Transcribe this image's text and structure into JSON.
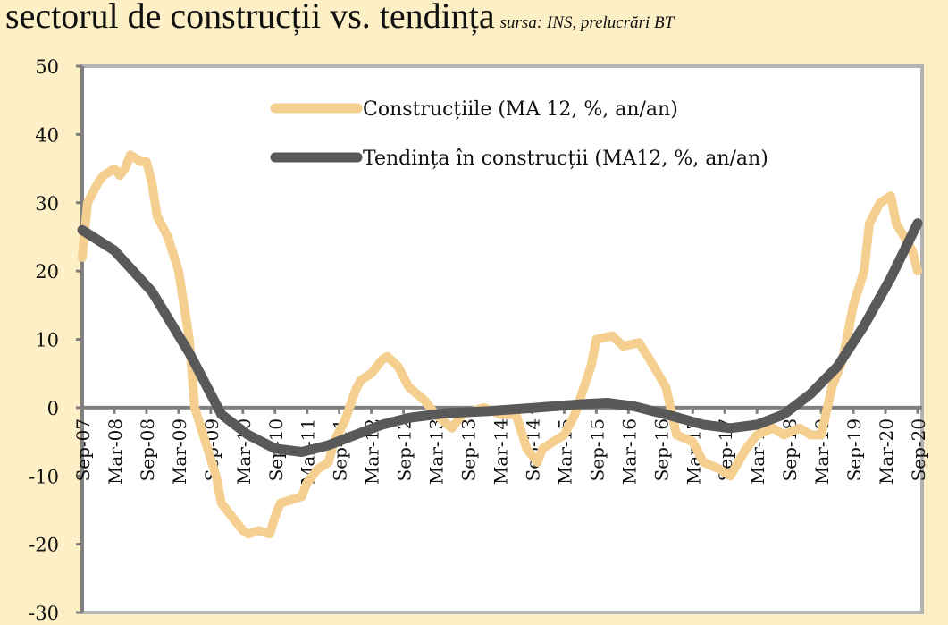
{
  "title": "sectorul de construcții vs. tendința",
  "source": "sursa: INS, prelucrări BT",
  "chart_data": {
    "type": "line",
    "title": "sectorul de construcții vs. tendința",
    "xlabel": "",
    "ylabel": "",
    "ylim": [
      -30,
      50
    ],
    "yticks": [
      50,
      40,
      30,
      20,
      10,
      0,
      -10,
      -20,
      -30
    ],
    "xlim": [
      "2007-09",
      "2020-09"
    ],
    "xticks": [
      "Sep-07",
      "Mar-08",
      "Sep-08",
      "Mar-09",
      "Sep-09",
      "Mar-10",
      "Sep-10",
      "Mar-11",
      "Sep-11",
      "Mar-12",
      "Sep-12",
      "Mar-13",
      "Sep-13",
      "Mar-14",
      "Sep-14",
      "Mar-15",
      "Sep-15",
      "Mar-16",
      "Sep-16",
      "Mar-17",
      "Sep-17",
      "Mar-18",
      "Sep-18",
      "Mar-19",
      "Sep-19",
      "Mar-20",
      "Sep-20"
    ],
    "grid": false,
    "legend": "top-center",
    "series": [
      {
        "name": "Construcțiile (MA 12, %, an/an)",
        "color": "#f4cf90",
        "points": [
          [
            "2007-09",
            22
          ],
          [
            "2007-10",
            30
          ],
          [
            "2007-12",
            33
          ],
          [
            "2008-01",
            34
          ],
          [
            "2008-03",
            35
          ],
          [
            "2008-04",
            34
          ],
          [
            "2008-05",
            35
          ],
          [
            "2008-06",
            37
          ],
          [
            "2008-08",
            36
          ],
          [
            "2008-09",
            36
          ],
          [
            "2008-10",
            33
          ],
          [
            "2008-11",
            28
          ],
          [
            "2009-01",
            25
          ],
          [
            "2009-03",
            20
          ],
          [
            "2009-05",
            10
          ],
          [
            "2009-06",
            0
          ],
          [
            "2009-08",
            -5
          ],
          [
            "2009-10",
            -10
          ],
          [
            "2009-11",
            -14
          ],
          [
            "2010-01",
            -16
          ],
          [
            "2010-03",
            -18
          ],
          [
            "2010-04",
            -18.5
          ],
          [
            "2010-06",
            -18
          ],
          [
            "2010-08",
            -18.5
          ],
          [
            "2010-09",
            -16
          ],
          [
            "2010-10",
            -14
          ],
          [
            "2010-12",
            -13.5
          ],
          [
            "2011-02",
            -13
          ],
          [
            "2011-03",
            -11
          ],
          [
            "2011-05",
            -9
          ],
          [
            "2011-07",
            -8
          ],
          [
            "2011-08",
            -5
          ],
          [
            "2011-10",
            -2
          ],
          [
            "2011-12",
            2.5
          ],
          [
            "2012-01",
            4
          ],
          [
            "2012-03",
            5
          ],
          [
            "2012-05",
            7
          ],
          [
            "2012-06",
            7.5
          ],
          [
            "2012-08",
            6
          ],
          [
            "2012-10",
            3
          ],
          [
            "2013-01",
            1
          ],
          [
            "2013-03",
            -1
          ],
          [
            "2013-06",
            -3
          ],
          [
            "2013-08",
            -1
          ],
          [
            "2013-12",
            0
          ],
          [
            "2014-03",
            -1
          ],
          [
            "2014-06",
            -1
          ],
          [
            "2014-08",
            -6
          ],
          [
            "2014-10",
            -8
          ],
          [
            "2014-11",
            -6
          ],
          [
            "2015-03",
            -4
          ],
          [
            "2015-05",
            -1
          ],
          [
            "2015-08",
            6
          ],
          [
            "2015-09",
            10
          ],
          [
            "2015-12",
            10.5
          ],
          [
            "2016-02",
            9
          ],
          [
            "2016-05",
            9.5
          ],
          [
            "2016-07",
            7
          ],
          [
            "2016-10",
            3
          ],
          [
            "2016-12",
            -4
          ],
          [
            "2017-03",
            -5
          ],
          [
            "2017-05",
            -8
          ],
          [
            "2017-08",
            -9
          ],
          [
            "2017-10",
            -10
          ],
          [
            "2018-01",
            -6
          ],
          [
            "2018-03",
            -4
          ],
          [
            "2018-06",
            -3
          ],
          [
            "2018-08",
            -4
          ],
          [
            "2018-11",
            -3
          ],
          [
            "2019-01",
            -4
          ],
          [
            "2019-03",
            -4
          ],
          [
            "2019-05",
            3
          ],
          [
            "2019-07",
            7
          ],
          [
            "2019-09",
            15
          ],
          [
            "2019-11",
            20
          ],
          [
            "2019-12",
            27
          ],
          [
            "2020-02",
            30
          ],
          [
            "2020-04",
            31
          ],
          [
            "2020-05",
            27
          ],
          [
            "2020-08",
            23
          ],
          [
            "2020-09",
            20
          ]
        ]
      },
      {
        "name": "Tendința în construcții (MA12, %, an/an)",
        "color": "#595959",
        "points": [
          [
            "2007-09",
            26
          ],
          [
            "2008-03",
            23
          ],
          [
            "2008-10",
            17
          ],
          [
            "2009-05",
            8
          ],
          [
            "2009-11",
            -1
          ],
          [
            "2010-04",
            -4
          ],
          [
            "2010-09",
            -6
          ],
          [
            "2011-02",
            -6.5
          ],
          [
            "2011-07",
            -5.5
          ],
          [
            "2011-12",
            -4
          ],
          [
            "2012-05",
            -2.5
          ],
          [
            "2012-10",
            -1.5
          ],
          [
            "2013-05",
            -0.8
          ],
          [
            "2014-01",
            -0.5
          ],
          [
            "2014-10",
            0
          ],
          [
            "2015-06",
            0.5
          ],
          [
            "2015-11",
            0.7
          ],
          [
            "2016-04",
            0.2
          ],
          [
            "2016-11",
            -1.2
          ],
          [
            "2017-05",
            -2.5
          ],
          [
            "2017-10",
            -3
          ],
          [
            "2018-03",
            -2.5
          ],
          [
            "2018-08",
            -1
          ],
          [
            "2019-01",
            2
          ],
          [
            "2019-06",
            6
          ],
          [
            "2019-11",
            12
          ],
          [
            "2020-04",
            19
          ],
          [
            "2020-09",
            27
          ]
        ]
      }
    ]
  }
}
